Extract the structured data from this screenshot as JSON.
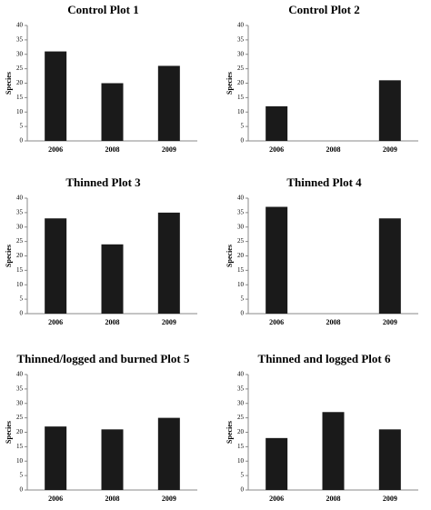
{
  "chart_data": [
    {
      "type": "bar",
      "title": "Control Plot 1",
      "ylabel": "Species",
      "categories": [
        "2006",
        "2008",
        "2009"
      ],
      "values": [
        31,
        20,
        26
      ],
      "color": "#1a1a1a",
      "ylim": [
        0,
        40
      ],
      "yticks": [
        0,
        5,
        10,
        15,
        20,
        25,
        30,
        35,
        40
      ]
    },
    {
      "type": "bar",
      "title": "Control Plot 2",
      "ylabel": "Species",
      "categories": [
        "2006",
        "2008",
        "2009"
      ],
      "values": [
        12,
        null,
        21
      ],
      "color": "#1a1a1a",
      "ylim": [
        0,
        40
      ],
      "yticks": [
        0,
        5,
        10,
        15,
        20,
        25,
        30,
        35,
        40
      ]
    },
    {
      "type": "bar",
      "title": "Thinned Plot 3",
      "ylabel": "Species",
      "categories": [
        "2006",
        "2008",
        "2009"
      ],
      "values": [
        33,
        24,
        35
      ],
      "color": "#1a1a1a",
      "ylim": [
        0,
        40
      ],
      "yticks": [
        0,
        5,
        10,
        15,
        20,
        25,
        30,
        35,
        40
      ]
    },
    {
      "type": "bar",
      "title": "Thinned Plot 4",
      "ylabel": "Species",
      "categories": [
        "2006",
        "2008",
        "2009"
      ],
      "values": [
        37,
        null,
        33
      ],
      "color": "#1a1a1a",
      "ylim": [
        0,
        40
      ],
      "yticks": [
        0,
        5,
        10,
        15,
        20,
        25,
        30,
        35,
        40
      ]
    },
    {
      "type": "bar",
      "title": "Thinned/logged and burned Plot 5",
      "ylabel": "Species",
      "categories": [
        "2006",
        "2008",
        "2009"
      ],
      "values": [
        22,
        21,
        25
      ],
      "color": "#1a1a1a",
      "ylim": [
        0,
        40
      ],
      "yticks": [
        0,
        5,
        10,
        15,
        20,
        25,
        30,
        35,
        40
      ]
    },
    {
      "type": "bar",
      "title": "Thinned and logged Plot 6",
      "ylabel": "Species",
      "categories": [
        "2006",
        "2008",
        "2009"
      ],
      "values": [
        18,
        27,
        21
      ],
      "color": "#1a1a1a",
      "ylim": [
        0,
        40
      ],
      "yticks": [
        0,
        5,
        10,
        15,
        20,
        25,
        30,
        35,
        40
      ]
    }
  ]
}
